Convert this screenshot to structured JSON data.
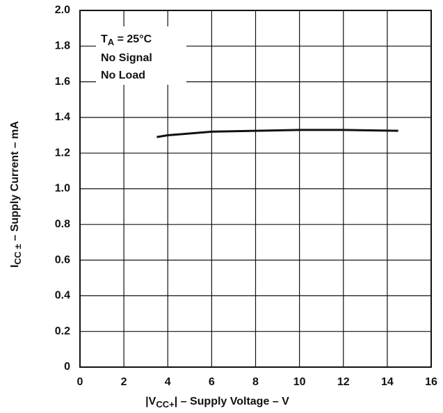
{
  "chart_data": {
    "type": "line",
    "xlabel": [
      "|V",
      "CC+",
      "| – Supply Voltage – V"
    ],
    "ylabel": [
      "I",
      "CC ±",
      " – Supply Current – mA"
    ],
    "annotations": [
      [
        "T",
        "A",
        " = 25°C"
      ],
      "No Signal",
      "No Load"
    ],
    "x": [
      3.5,
      4,
      5,
      6,
      8,
      10,
      12,
      14.5
    ],
    "series": [
      {
        "color": "#111111",
        "values": [
          1.29,
          1.3,
          1.31,
          1.32,
          1.325,
          1.33,
          1.33,
          1.325
        ]
      }
    ],
    "xlim": [
      0,
      16
    ],
    "xticks": [
      0,
      2,
      4,
      6,
      8,
      10,
      12,
      14,
      16
    ],
    "ylim": [
      0,
      2
    ],
    "yticks": [
      0,
      0.2,
      0.4,
      0.6,
      0.8,
      {
        "value": 1,
        "label": "1.0"
      },
      1.2,
      1.4,
      1.6,
      1.8,
      {
        "value": 2,
        "label": "2.0"
      }
    ],
    "grid": true
  }
}
